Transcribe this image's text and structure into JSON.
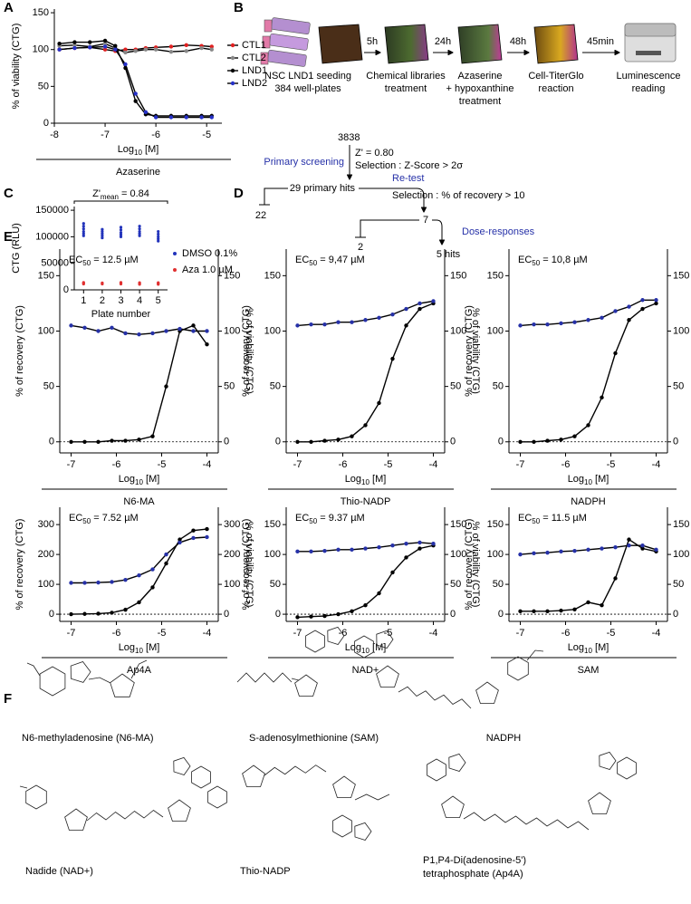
{
  "panel_labels": [
    "A",
    "B",
    "C",
    "D",
    "E",
    "F"
  ],
  "chart_data": [
    {
      "type": "line",
      "xlabel": [
        "Log",
        "10",
        " [M]"
      ],
      "ylabel": "% of viability (CTG)",
      "compound": "Azaserine",
      "x": [
        -7.9,
        -7.6,
        -7.3,
        -7.0,
        -6.8,
        -6.6,
        -6.4,
        -6.2,
        -6.0,
        -5.7,
        -5.4,
        -5.1,
        -4.9
      ],
      "series": [
        {
          "name": "CTL1",
          "color": "#e02020",
          "values": [
            100,
            102,
            103,
            100,
            98,
            100,
            100,
            102,
            103,
            104,
            106,
            105,
            104
          ]
        },
        {
          "name": "CTL2",
          "color": "#888888",
          "values": [
            105,
            106,
            104,
            108,
            102,
            96,
            98,
            100,
            100,
            97,
            98,
            102,
            100
          ]
        },
        {
          "name": "LND1",
          "color": "#000000",
          "values": [
            108,
            110,
            110,
            112,
            105,
            75,
            30,
            12,
            10,
            10,
            10,
            10,
            10
          ]
        },
        {
          "name": "LND2",
          "color": "#2631c8",
          "values": [
            100,
            102,
            103,
            104,
            100,
            80,
            40,
            15,
            8,
            8,
            8,
            8,
            8
          ]
        }
      ],
      "xlim": [
        -8,
        -4.7
      ],
      "xticks": [
        -8,
        -7,
        -6,
        -5
      ],
      "ylim": [
        0,
        155
      ],
      "yticks": [
        0,
        50,
        100,
        150
      ],
      "legend": "right"
    },
    {
      "type": "strip",
      "title": [
        "Z'",
        "mean",
        " = 0.84"
      ],
      "xlabel": "Plate number",
      "ylabel": "CTG (RLU)",
      "categories": [
        "1",
        "2",
        "3",
        "4",
        "5"
      ],
      "series": [
        {
          "name": "DMSO 0.1%",
          "color": "#2233bb",
          "values": [
            [
              102000,
              106000,
              110000,
              115000,
              120000,
              125000
            ],
            [
              98000,
              102000,
              106000,
              110000,
              114000
            ],
            [
              100000,
              104000,
              108000,
              113000,
              118000
            ],
            [
              102000,
              106000,
              110000,
              115000,
              120000
            ],
            [
              92000,
              96000,
              100000,
              105000,
              110000
            ]
          ]
        },
        {
          "name": "Aza 1.0 µM",
          "color": "#e03030",
          "values": [
            [
              11000,
              12500,
              14000
            ],
            [
              11000,
              12000,
              13000
            ],
            [
              11000,
              12500,
              14000
            ],
            [
              10500,
              12000,
              13500
            ],
            [
              10500,
              12000,
              13500
            ]
          ]
        }
      ],
      "ylim": [
        0,
        157000
      ],
      "yticks": [
        0,
        50000,
        100000,
        150000
      ],
      "legend": "right"
    },
    {
      "type": "line",
      "annotation": [
        "EC",
        "50",
        " = 12.5 µM"
      ],
      "xlabel": [
        "Log",
        "10",
        " [M]"
      ],
      "ylabel": "% of recovery (CTG)",
      "y2label": "% of viability (CTG)",
      "compound": "N6-MA",
      "y2_color": "#2631a8",
      "zero_line": true,
      "x": [
        -7,
        -6.7,
        -6.4,
        -6.1,
        -5.8,
        -5.5,
        -5.2,
        -4.9,
        -4.6,
        -4.3,
        -4
      ],
      "series": [
        {
          "name": "recovery",
          "color": "#000000",
          "values": [
            0,
            0,
            0,
            1,
            1,
            2,
            5,
            50,
            100,
            105,
            88
          ]
        },
        {
          "name": "viability",
          "color": "#2631a8",
          "axis": "y2",
          "values": [
            105,
            103,
            100,
            103,
            98,
            97,
            98,
            100,
            102,
            100,
            100
          ]
        }
      ],
      "xlim": [
        -7.25,
        -3.75
      ],
      "xticks": [
        -7,
        -6,
        -5,
        -4
      ],
      "ylim": [
        -10,
        174
      ],
      "yticks": [
        0,
        50,
        100,
        150
      ],
      "y2lim": [
        -10,
        174
      ],
      "y2ticks": [
        0,
        50,
        100,
        150
      ]
    },
    {
      "type": "line",
      "annotation": [
        "EC",
        "50",
        " = 9,47 µM"
      ],
      "xlabel": [
        "Log",
        "10",
        " [M]"
      ],
      "ylabel": "% of recovery (CTG)",
      "y2label": "% of viability (CTG)",
      "compound": "Thio-NADP",
      "y2_color": "#2631a8",
      "zero_line": true,
      "x": [
        -7,
        -6.7,
        -6.4,
        -6.1,
        -5.8,
        -5.5,
        -5.2,
        -4.9,
        -4.6,
        -4.3,
        -4
      ],
      "series": [
        {
          "name": "recovery",
          "color": "#000000",
          "values": [
            0,
            0,
            1,
            2,
            5,
            15,
            35,
            75,
            105,
            120,
            125
          ]
        },
        {
          "name": "viability",
          "color": "#2631a8",
          "axis": "y2",
          "values": [
            105,
            106,
            106,
            108,
            108,
            110,
            112,
            115,
            120,
            125,
            127
          ]
        }
      ],
      "xlim": [
        -7.25,
        -3.75
      ],
      "xticks": [
        -7,
        -6,
        -5,
        -4
      ],
      "ylim": [
        -10,
        174
      ],
      "yticks": [
        0,
        50,
        100,
        150
      ],
      "y2lim": [
        -10,
        174
      ],
      "y2ticks": [
        0,
        50,
        100,
        150
      ]
    },
    {
      "type": "line",
      "annotation": [
        "EC",
        "50",
        " = 10,8 µM"
      ],
      "xlabel": [
        "Log",
        "10",
        " [M]"
      ],
      "ylabel": "% of recovery (CTG)",
      "y2label": "% of viability (CTG)",
      "compound": "NADPH",
      "y2_color": "#2631a8",
      "zero_line": true,
      "x": [
        -7,
        -6.7,
        -6.4,
        -6.1,
        -5.8,
        -5.5,
        -5.2,
        -4.9,
        -4.6,
        -4.3,
        -4
      ],
      "series": [
        {
          "name": "recovery",
          "color": "#000000",
          "values": [
            0,
            0,
            1,
            2,
            5,
            15,
            40,
            80,
            110,
            120,
            125
          ]
        },
        {
          "name": "viability",
          "color": "#2631a8",
          "axis": "y2",
          "values": [
            105,
            106,
            106,
            107,
            108,
            110,
            112,
            118,
            122,
            128,
            128
          ]
        }
      ],
      "xlim": [
        -7.25,
        -3.75
      ],
      "xticks": [
        -7,
        -6,
        -5,
        -4
      ],
      "ylim": [
        -10,
        174
      ],
      "yticks": [
        0,
        50,
        100,
        150
      ],
      "y2lim": [
        -10,
        174
      ],
      "y2ticks": [
        0,
        50,
        100,
        150
      ]
    },
    {
      "type": "line",
      "annotation": [
        "EC",
        "50",
        " = 7.52 µM"
      ],
      "xlabel": [
        "Log",
        "10",
        " [M]"
      ],
      "ylabel": "% of recovery (CTG)",
      "y2label": "% of viability (CTG)",
      "compound": "Ap4A",
      "y2_color": "#2631a8",
      "zero_line": true,
      "x": [
        -7,
        -6.7,
        -6.4,
        -6.1,
        -5.8,
        -5.5,
        -5.2,
        -4.9,
        -4.6,
        -4.3,
        -4
      ],
      "series": [
        {
          "name": "recovery",
          "color": "#000000",
          "values": [
            0,
            1,
            2,
            5,
            15,
            40,
            90,
            170,
            250,
            280,
            285
          ]
        },
        {
          "name": "viability",
          "color": "#2631a8",
          "axis": "y2",
          "values": [
            105,
            105,
            106,
            108,
            115,
            130,
            150,
            200,
            240,
            255,
            258
          ]
        }
      ],
      "xlim": [
        -7.25,
        -3.75
      ],
      "xticks": [
        -7,
        -6,
        -5,
        -4
      ],
      "ylim": [
        -24,
        358
      ],
      "yticks": [
        0,
        100,
        200,
        300
      ],
      "y2lim": [
        -24,
        358
      ],
      "y2ticks": [
        0,
        100,
        200,
        300
      ]
    },
    {
      "type": "line",
      "annotation": [
        "EC",
        "50",
        " = 9.37 µM"
      ],
      "xlabel": [
        "Log",
        "10",
        " [M]"
      ],
      "ylabel": "% of recovery (CTG)",
      "y2label": "% of viability (CTG)",
      "compound": "NAD+",
      "y2_color": "#2631a8",
      "zero_line": true,
      "x": [
        -7,
        -6.7,
        -6.4,
        -6.1,
        -5.8,
        -5.5,
        -5.2,
        -4.9,
        -4.6,
        -4.3,
        -4
      ],
      "series": [
        {
          "name": "recovery",
          "color": "#000000",
          "values": [
            -5,
            -4,
            -3,
            0,
            5,
            15,
            35,
            70,
            95,
            110,
            115
          ]
        },
        {
          "name": "viability",
          "color": "#2631a8",
          "axis": "y2",
          "values": [
            105,
            105,
            106,
            108,
            108,
            110,
            112,
            115,
            118,
            120,
            118
          ]
        }
      ],
      "xlim": [
        -7.25,
        -3.75
      ],
      "xticks": [
        -7,
        -6,
        -5,
        -4
      ],
      "ylim": [
        -12,
        179
      ],
      "yticks": [
        0,
        50,
        100,
        150
      ],
      "y2lim": [
        -12,
        179
      ],
      "y2ticks": [
        0,
        50,
        100,
        150
      ]
    },
    {
      "type": "line",
      "annotation": [
        "EC",
        "50",
        " = 11.5 µM"
      ],
      "xlabel": [
        "Log",
        "10",
        " [M]"
      ],
      "ylabel": "% of recovery (CTG)",
      "y2label": "% of viability (CTG)",
      "compound": "SAM",
      "y2_color": "#2631a8",
      "zero_line": true,
      "x": [
        -7,
        -6.7,
        -6.4,
        -6.1,
        -5.8,
        -5.5,
        -5.2,
        -4.9,
        -4.6,
        -4.3,
        -4
      ],
      "series": [
        {
          "name": "recovery",
          "color": "#000000",
          "values": [
            5,
            5,
            5,
            6,
            8,
            20,
            15,
            60,
            125,
            110,
            105
          ]
        },
        {
          "name": "viability",
          "color": "#2631a8",
          "axis": "y2",
          "values": [
            100,
            102,
            103,
            105,
            106,
            108,
            110,
            112,
            115,
            115,
            108
          ]
        }
      ],
      "xlim": [
        -7.25,
        -3.75
      ],
      "xticks": [
        -7,
        -6,
        -5,
        -4
      ],
      "ylim": [
        -12,
        179
      ],
      "yticks": [
        0,
        50,
        100,
        150
      ],
      "y2lim": [
        -12,
        179
      ],
      "y2ticks": [
        0,
        50,
        100,
        150
      ]
    }
  ],
  "workflow": {
    "steps": [
      [
        "NSC LND1 seeding",
        "384 well-plates"
      ],
      [
        "Chemical libraries",
        "treatment"
      ],
      [
        "Azaserine",
        "+ hypoxanthine",
        "treatment"
      ],
      [
        "Cell-TiterGlo",
        "reaction"
      ],
      [
        "Luminescence",
        "reading"
      ]
    ],
    "intervals": [
      "5h",
      "24h",
      "48h",
      "45min"
    ]
  },
  "screening": {
    "library": "3838",
    "zprime": "Z' = 0.80",
    "selection1": "Selection : Z-Score > 2σ",
    "stage1": "Primary screening",
    "hits1": "29 primary hits",
    "excluded1": "22",
    "stage2": "Re-test",
    "selection2": "Selection : % of recovery > 10",
    "hits2": "7",
    "excluded2": "2",
    "stage3": "Dose-responses",
    "hits3": "5 hits"
  },
  "structures": [
    {
      "name": [
        "N6-methyladenosine (N6-MA)"
      ]
    },
    {
      "name": [
        "S-adenosylmethionine (SAM)"
      ]
    },
    {
      "name": [
        "NADPH"
      ]
    },
    {
      "name": [
        "Nadide (NAD+)"
      ]
    },
    {
      "name": [
        "Thio-NADP"
      ]
    },
    {
      "name": [
        "P1,P4-Di(adenosine-5')",
        "tetraphosphate (Ap4A)"
      ]
    }
  ]
}
